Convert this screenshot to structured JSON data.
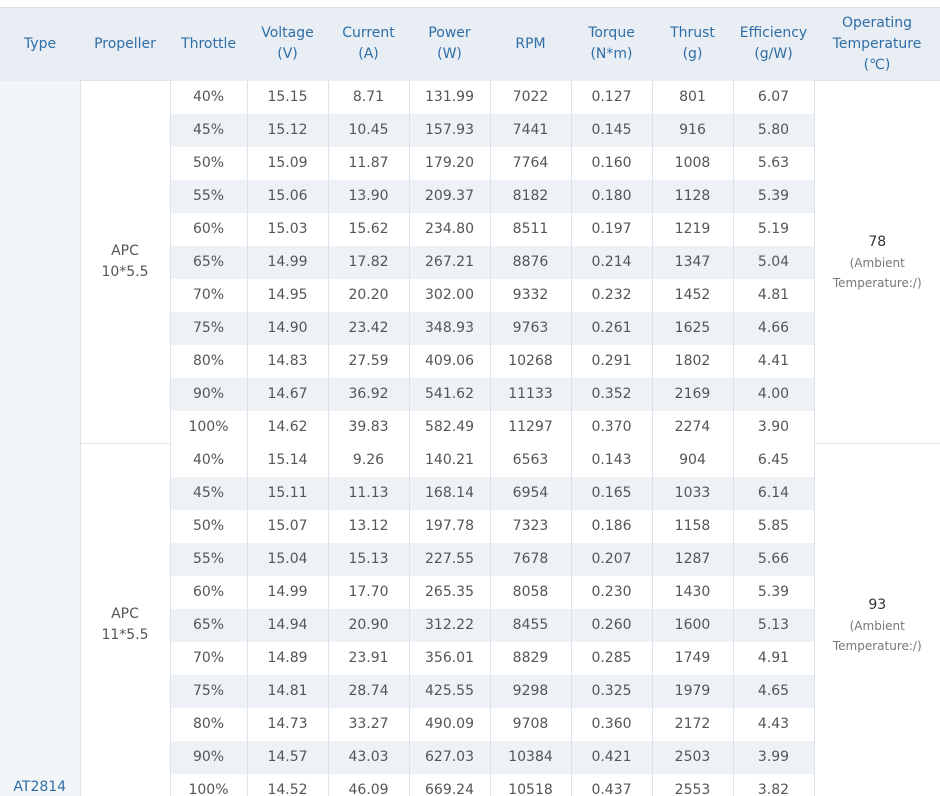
{
  "table": {
    "type_label": "AT2814",
    "headers": [
      [
        "Type"
      ],
      [
        "Propeller"
      ],
      [
        "Throttle"
      ],
      [
        "Voltage",
        "(V)"
      ],
      [
        "Current",
        "(A)"
      ],
      [
        "Power",
        "(W)"
      ],
      [
        "RPM"
      ],
      [
        "Torque",
        "(N*m)"
      ],
      [
        "Thrust",
        "(g)"
      ],
      [
        "Efficiency",
        "(g/W)"
      ],
      [
        "Operating",
        "Temperature",
        "(℃)"
      ]
    ],
    "groups": [
      {
        "propeller": [
          "APC",
          "10*5.5"
        ],
        "temperature": "78",
        "temperature_note": "(Ambient Temperature:/)",
        "rows": [
          [
            "40%",
            "15.15",
            "8.71",
            "131.99",
            "7022",
            "0.127",
            "801",
            "6.07"
          ],
          [
            "45%",
            "15.12",
            "10.45",
            "157.93",
            "7441",
            "0.145",
            "916",
            "5.80"
          ],
          [
            "50%",
            "15.09",
            "11.87",
            "179.20",
            "7764",
            "0.160",
            "1008",
            "5.63"
          ],
          [
            "55%",
            "15.06",
            "13.90",
            "209.37",
            "8182",
            "0.180",
            "1128",
            "5.39"
          ],
          [
            "60%",
            "15.03",
            "15.62",
            "234.80",
            "8511",
            "0.197",
            "1219",
            "5.19"
          ],
          [
            "65%",
            "14.99",
            "17.82",
            "267.21",
            "8876",
            "0.214",
            "1347",
            "5.04"
          ],
          [
            "70%",
            "14.95",
            "20.20",
            "302.00",
            "9332",
            "0.232",
            "1452",
            "4.81"
          ],
          [
            "75%",
            "14.90",
            "23.42",
            "348.93",
            "9763",
            "0.261",
            "1625",
            "4.66"
          ],
          [
            "80%",
            "14.83",
            "27.59",
            "409.06",
            "10268",
            "0.291",
            "1802",
            "4.41"
          ],
          [
            "90%",
            "14.67",
            "36.92",
            "541.62",
            "11133",
            "0.352",
            "2169",
            "4.00"
          ],
          [
            "100%",
            "14.62",
            "39.83",
            "582.49",
            "11297",
            "0.370",
            "2274",
            "3.90"
          ]
        ]
      },
      {
        "propeller": [
          "APC",
          "11*5.5"
        ],
        "temperature": "93",
        "temperature_note": "(Ambient Temperature:/)",
        "rows": [
          [
            "40%",
            "15.14",
            "9.26",
            "140.21",
            "6563",
            "0.143",
            "904",
            "6.45"
          ],
          [
            "45%",
            "15.11",
            "11.13",
            "168.14",
            "6954",
            "0.165",
            "1033",
            "6.14"
          ],
          [
            "50%",
            "15.07",
            "13.12",
            "197.78",
            "7323",
            "0.186",
            "1158",
            "5.85"
          ],
          [
            "55%",
            "15.04",
            "15.13",
            "227.55",
            "7678",
            "0.207",
            "1287",
            "5.66"
          ],
          [
            "60%",
            "14.99",
            "17.70",
            "265.35",
            "8058",
            "0.230",
            "1430",
            "5.39"
          ],
          [
            "65%",
            "14.94",
            "20.90",
            "312.22",
            "8455",
            "0.260",
            "1600",
            "5.13"
          ],
          [
            "70%",
            "14.89",
            "23.91",
            "356.01",
            "8829",
            "0.285",
            "1749",
            "4.91"
          ],
          [
            "75%",
            "14.81",
            "28.74",
            "425.55",
            "9298",
            "0.325",
            "1979",
            "4.65"
          ],
          [
            "80%",
            "14.73",
            "33.27",
            "490.09",
            "9708",
            "0.360",
            "2172",
            "4.43"
          ],
          [
            "90%",
            "14.57",
            "43.03",
            "627.03",
            "10384",
            "0.421",
            "2503",
            "3.99"
          ],
          [
            "100%",
            "14.52",
            "46.09",
            "669.24",
            "10518",
            "0.437",
            "2553",
            "3.82"
          ]
        ]
      }
    ]
  }
}
